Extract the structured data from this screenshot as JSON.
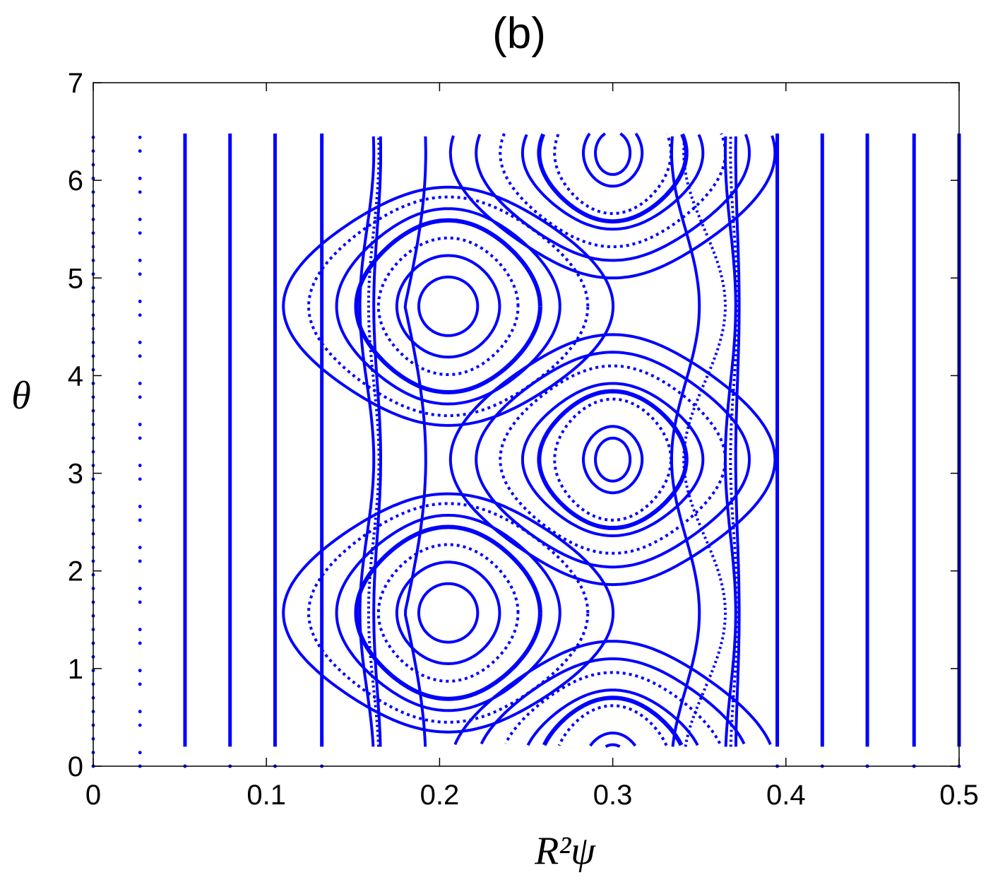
{
  "chart_data": {
    "type": "scatter",
    "title": "(b)",
    "xlabel": "R²ψ",
    "ylabel": "θ",
    "xlim": [
      0,
      0.5
    ],
    "ylim": [
      0,
      7
    ],
    "xticks": [
      "0",
      "0.1",
      "0.2",
      "0.3",
      "0.4",
      "0.5"
    ],
    "yticks": [
      "0",
      "1",
      "2",
      "3",
      "4",
      "5",
      "6",
      "7"
    ],
    "grid": false,
    "marker_color": "#0000ff",
    "theta_range": [
      0.2,
      6.48
    ],
    "series": [
      {
        "kind": "vertical",
        "x": [
          0.053,
          0.079,
          0.105,
          0.132,
          0.395,
          0.421,
          0.447,
          0.474,
          0.5
        ]
      },
      {
        "kind": "sparse",
        "x": [
          0.0,
          0.027
        ]
      },
      {
        "kind": "wavy",
        "x": [
          0.158,
          0.162,
          0.164,
          0.353,
          0.368,
          0.37,
          0.372
        ],
        "amplitude": [
          0.004,
          0.003,
          0.002,
          -0.012,
          -0.003,
          -0.002,
          -0.001
        ]
      },
      {
        "kind": "island",
        "center": [
          0.205,
          1.57
        ],
        "dx": [
          0.017,
          0.028,
          0.036,
          0.045,
          0.052,
          0.062,
          0.07
        ],
        "dtheta": [
          0.3,
          0.52,
          0.7,
          0.88,
          1.0,
          1.12,
          1.22
        ]
      },
      {
        "kind": "island",
        "center": [
          0.205,
          4.71
        ],
        "dx": [
          0.017,
          0.028,
          0.036,
          0.045,
          0.052,
          0.062,
          0.07
        ],
        "dtheta": [
          0.3,
          0.52,
          0.7,
          0.88,
          1.0,
          1.12,
          1.22
        ]
      },
      {
        "kind": "island",
        "center": [
          0.3,
          3.14
        ],
        "dx": [
          0.01,
          0.016,
          0.03,
          0.036,
          0.042,
          0.05,
          0.058,
          0.066
        ],
        "dtheta": [
          0.22,
          0.34,
          0.62,
          0.7,
          0.78,
          0.96,
          1.1,
          1.28
        ]
      },
      {
        "kind": "island",
        "center": [
          0.3,
          6.28
        ],
        "dx": [
          0.01,
          0.016,
          0.03,
          0.036,
          0.042,
          0.05,
          0.058,
          0.066
        ],
        "dtheta": [
          0.22,
          0.34,
          0.62,
          0.7,
          0.78,
          0.96,
          1.1,
          1.28
        ]
      },
      {
        "kind": "island",
        "center": [
          0.3,
          0.0
        ],
        "dx": [
          0.01,
          0.016,
          0.03,
          0.036,
          0.042,
          0.05,
          0.058,
          0.066
        ],
        "dtheta": [
          0.22,
          0.34,
          0.62,
          0.7,
          0.78,
          0.96,
          1.1,
          1.28
        ]
      }
    ]
  }
}
